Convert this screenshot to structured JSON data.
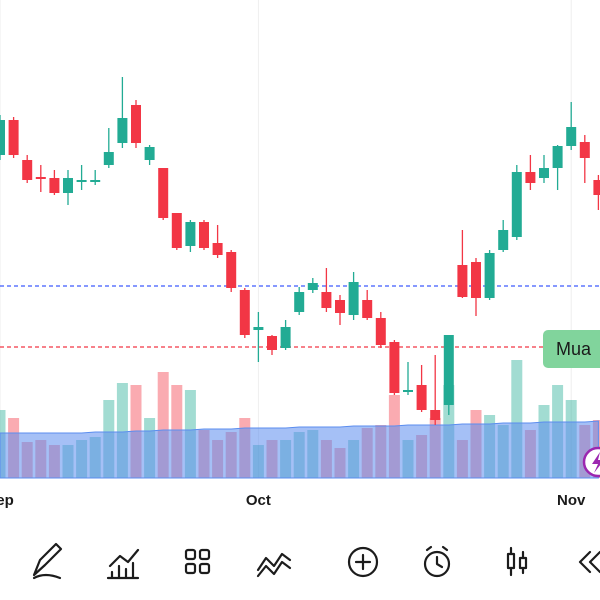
{
  "chart_data": {
    "type": "candlestick",
    "categories": [
      "Sep",
      null,
      null,
      null,
      null,
      null,
      null,
      null,
      null,
      null,
      null,
      null,
      null,
      null,
      null,
      null,
      null,
      null,
      null,
      "Oct",
      null,
      null,
      null,
      null,
      null,
      null,
      null,
      null,
      null,
      null,
      null,
      null,
      null,
      null,
      null,
      null,
      null,
      null,
      null,
      null,
      null,
      null,
      "Nov",
      null,
      null
    ],
    "open": [
      445,
      480,
      440,
      423,
      422,
      407,
      418,
      418,
      435,
      457,
      495,
      440,
      432,
      387,
      354,
      378,
      357,
      348,
      310,
      270,
      264,
      252,
      288,
      310,
      308,
      300,
      285,
      300,
      282,
      258,
      208,
      215,
      190,
      195,
      335,
      338,
      302,
      350,
      363,
      428,
      422,
      432,
      454,
      458,
      420
    ],
    "high": [
      485,
      483,
      445,
      435,
      430,
      430,
      435,
      430,
      472,
      523,
      500,
      455,
      432,
      387,
      380,
      380,
      375,
      350,
      312,
      288,
      265,
      280,
      313,
      322,
      332,
      305,
      328,
      310,
      288,
      260,
      238,
      235,
      245,
      265,
      370,
      342,
      350,
      380,
      435,
      445,
      445,
      455,
      498,
      465,
      425
    ],
    "low": [
      440,
      442,
      417,
      408,
      405,
      395,
      410,
      415,
      432,
      452,
      452,
      435,
      380,
      350,
      348,
      350,
      342,
      308,
      262,
      238,
      245,
      250,
      285,
      307,
      288,
      275,
      280,
      280,
      252,
      205,
      205,
      188,
      175,
      185,
      302,
      284,
      300,
      348,
      360,
      410,
      417,
      410,
      450,
      417,
      390
    ],
    "close": [
      480,
      445,
      420,
      421,
      407,
      422,
      420,
      420,
      448,
      482,
      457,
      453,
      382,
      352,
      378,
      352,
      345,
      312,
      265,
      273,
      250,
      273,
      308,
      317,
      292,
      287,
      318,
      282,
      255,
      207,
      210,
      190,
      180,
      265,
      303,
      302,
      347,
      370,
      428,
      417,
      432,
      454,
      473,
      442,
      405
    ],
    "volume": [
      68,
      60,
      36,
      38,
      33,
      33,
      38,
      41,
      78,
      95,
      93,
      60,
      106,
      93,
      88,
      48,
      38,
      46,
      60,
      33,
      38,
      38,
      46,
      48,
      38,
      30,
      38,
      50,
      53,
      83,
      38,
      43,
      60,
      93,
      38,
      68,
      63,
      53,
      118,
      48,
      73,
      93,
      78,
      53,
      58
    ],
    "volume_ma": [
      45,
      45,
      45,
      45,
      45,
      45,
      45,
      46,
      46,
      46,
      47,
      47,
      48,
      48,
      48,
      49,
      49,
      49,
      50,
      50,
      50,
      50,
      51,
      51,
      51,
      51,
      52,
      52,
      52,
      52,
      53,
      53,
      53,
      53,
      54,
      54,
      54,
      55,
      55,
      55,
      56,
      56,
      56,
      56,
      57
    ],
    "up_color": "#22ab94",
    "down_color": "#f23645",
    "volume_ma_color": "#5b8def",
    "ylim": [
      120,
      600
    ],
    "vlim": [
      0,
      120
    ],
    "levels": [
      {
        "value": 314,
        "color": "#3d5afe"
      },
      {
        "value": 253,
        "color": "#f23645"
      }
    ]
  },
  "order_button": "Mua"
}
